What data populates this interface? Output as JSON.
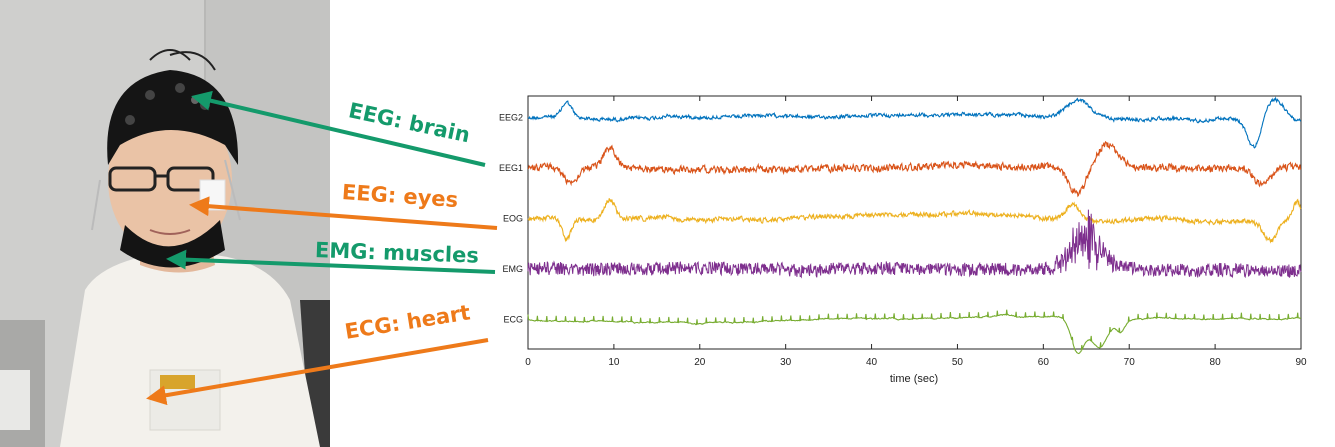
{
  "colors": {
    "eeg2": "#0072BD",
    "eeg1": "#D95319",
    "eog": "#EDB120",
    "emg": "#7E2F8E",
    "ecg": "#77AC30",
    "callout_green": "#149a6b",
    "callout_orange": "#ee7a1a"
  },
  "callouts": [
    {
      "id": "eeg-brain",
      "text": "EEG: brain",
      "color": "#149a6b"
    },
    {
      "id": "eeg-eyes",
      "text": "EEG: eyes",
      "color": "#ee7a1a"
    },
    {
      "id": "emg-muscles",
      "text": "EMG: muscles",
      "color": "#149a6b"
    },
    {
      "id": "ecg-heart",
      "text": "ECG: heart",
      "color": "#ee7a1a"
    }
  ],
  "chart_data": {
    "type": "line",
    "xlabel": "time (sec)",
    "xlim": [
      0,
      90
    ],
    "x_ticks": [
      0,
      10,
      20,
      30,
      40,
      50,
      60,
      70,
      80,
      90
    ],
    "grid": false,
    "series": [
      {
        "name": "EEG2",
        "color": "#0072BD",
        "events": [
          {
            "t": 4.5,
            "amp": 1.6,
            "dur": 1.2
          },
          {
            "t": 64.0,
            "amp": 1.8,
            "dur": 2.5
          },
          {
            "t": 84.5,
            "amp": -2.8,
            "dur": 1.5
          },
          {
            "t": 87.0,
            "amp": 2.0,
            "dur": 2.0
          }
        ]
      },
      {
        "name": "EEG1",
        "color": "#D95319",
        "events": [
          {
            "t": 5.0,
            "amp": -1.5,
            "dur": 1.5
          },
          {
            "t": 9.5,
            "amp": 2.0,
            "dur": 1.5
          },
          {
            "t": 64.0,
            "amp": -2.5,
            "dur": 2.0
          },
          {
            "t": 67.5,
            "amp": 2.5,
            "dur": 2.5
          },
          {
            "t": 85.5,
            "amp": -1.8,
            "dur": 2.0
          }
        ]
      },
      {
        "name": "EOG",
        "color": "#EDB120",
        "events": [
          {
            "t": 4.5,
            "amp": -2.0,
            "dur": 1.0
          },
          {
            "t": 9.5,
            "amp": 2.0,
            "dur": 1.2
          },
          {
            "t": 63.5,
            "amp": 1.5,
            "dur": 1.5
          },
          {
            "t": 86.5,
            "amp": -2.0,
            "dur": 1.5
          },
          {
            "t": 89.5,
            "amp": 1.8,
            "dur": 1.0
          }
        ]
      },
      {
        "name": "EMG",
        "color": "#7E2F8E",
        "events": [
          {
            "t": 65.0,
            "amp": 3.0,
            "dur": 3.5
          }
        ]
      },
      {
        "name": "ECG",
        "color": "#77AC30",
        "events": [
          {
            "t": 64.0,
            "amp": -3.5,
            "dur": 1.5
          },
          {
            "t": 66.5,
            "amp": -3.0,
            "dur": 2.0
          },
          {
            "t": 69.0,
            "amp": -1.2,
            "dur": 1.0
          }
        ]
      }
    ]
  }
}
